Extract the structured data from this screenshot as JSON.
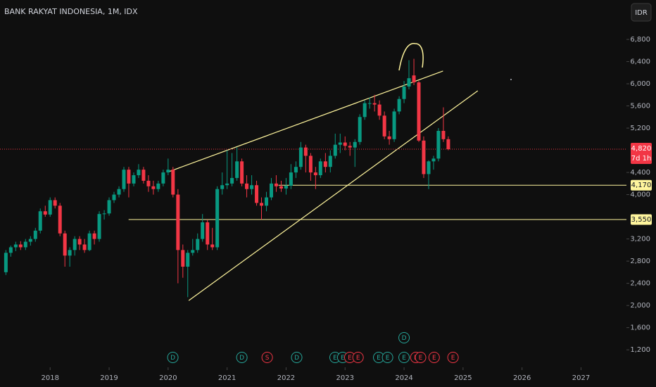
{
  "chart_data": {
    "type": "candlestick",
    "title": "BANK RAKYAT INDONESIA, 1M, IDX",
    "currency": "IDR",
    "up_color": "#089981",
    "down_color": "#f23645",
    "x": [
      2017.25,
      2017.333,
      2017.417,
      2017.5,
      2017.583,
      2017.667,
      2017.75,
      2017.833,
      2017.917,
      2018,
      2018.083,
      2018.167,
      2018.25,
      2018.333,
      2018.417,
      2018.5,
      2018.583,
      2018.667,
      2018.75,
      2018.833,
      2018.917,
      2019,
      2019.083,
      2019.167,
      2019.25,
      2019.333,
      2019.417,
      2019.5,
      2019.583,
      2019.667,
      2019.75,
      2019.833,
      2019.917,
      2020,
      2020.083,
      2020.167,
      2020.25,
      2020.333,
      2020.417,
      2020.5,
      2020.583,
      2020.667,
      2020.75,
      2020.833,
      2020.917,
      2021,
      2021.083,
      2021.167,
      2021.25,
      2021.333,
      2021.417,
      2021.5,
      2021.583,
      2021.667,
      2021.75,
      2021.833,
      2021.917,
      2022,
      2022.083,
      2022.167,
      2022.25,
      2022.333,
      2022.417,
      2022.5,
      2022.583,
      2022.667,
      2022.75,
      2022.833,
      2022.917,
      2023,
      2023.083,
      2023.167,
      2023.25,
      2023.333,
      2023.417,
      2023.5,
      2023.583,
      2023.667,
      2023.75,
      2023.833,
      2023.917,
      2024,
      2024.083,
      2024.167,
      2024.25,
      2024.333,
      2024.417,
      2024.5,
      2024.583,
      2024.667,
      2024.75
    ],
    "open": [
      2600,
      2950,
      3050,
      3100,
      3050,
      3150,
      3200,
      3350,
      3700,
      3640,
      3900,
      3800,
      3300,
      2900,
      3000,
      3200,
      3100,
      3000,
      3300,
      3200,
      3650,
      3660,
      3900,
      4000,
      4100,
      4450,
      4200,
      4350,
      4450,
      4250,
      4150,
      4100,
      4200,
      4400,
      4450,
      4000,
      3000,
      2700,
      2950,
      3000,
      3200,
      3500,
      3100,
      3050,
      4100,
      4170,
      4200,
      4300,
      4600,
      4200,
      4100,
      4170,
      3850,
      3800,
      3950,
      4200,
      4150,
      4110,
      4160,
      4400,
      4500,
      4850,
      4700,
      4400,
      4350,
      4600,
      4500,
      4700,
      4900,
      4940,
      4880,
      4850,
      4950,
      5400,
      5650,
      5650,
      5625,
      5425,
      5050,
      5000,
      5500,
      5725,
      5950,
      6150,
      6025,
      4975,
      4370,
      4600,
      4650,
      5150,
      5000
    ],
    "high": [
      3000,
      3080,
      3150,
      3160,
      3200,
      3250,
      3400,
      3750,
      3800,
      3950,
      3950,
      3850,
      3350,
      3050,
      3250,
      3250,
      3200,
      3350,
      3350,
      3700,
      3720,
      3950,
      4050,
      4150,
      4500,
      4500,
      4400,
      4550,
      4500,
      4350,
      4250,
      4250,
      4450,
      4650,
      4500,
      4100,
      3100,
      3000,
      3200,
      3300,
      3650,
      3550,
      3400,
      4150,
      4400,
      4800,
      4750,
      4850,
      4650,
      4350,
      4350,
      4250,
      3950,
      4050,
      4300,
      4350,
      4250,
      4300,
      4550,
      4600,
      4950,
      4900,
      4750,
      4500,
      4650,
      4750,
      4800,
      5100,
      5100,
      5050,
      4950,
      5000,
      5450,
      5700,
      5750,
      5800,
      5700,
      5500,
      5150,
      5550,
      5775,
      6050,
      6425,
      6450,
      6050,
      5050,
      4620,
      4700,
      5200,
      5575,
      5050
    ],
    "low": [
      2550,
      2880,
      2980,
      3000,
      3000,
      3080,
      3150,
      3300,
      3600,
      3600,
      3750,
      3250,
      2700,
      2700,
      2900,
      3000,
      2950,
      2980,
      3100,
      3150,
      3550,
      3620,
      3850,
      3950,
      4050,
      3950,
      4150,
      4300,
      4200,
      4050,
      4000,
      4050,
      4150,
      4350,
      3950,
      2400,
      2500,
      2150,
      2900,
      2950,
      3150,
      3000,
      3000,
      3000,
      4000,
      4100,
      4150,
      4250,
      4150,
      3950,
      4000,
      3800,
      3550,
      3700,
      3900,
      4050,
      4050,
      4000,
      4100,
      4300,
      4450,
      4400,
      4250,
      4100,
      4300,
      4400,
      4400,
      4650,
      4750,
      4800,
      4700,
      4500,
      4900,
      5350,
      5550,
      5500,
      5350,
      5000,
      4900,
      4950,
      5450,
      5650,
      5900,
      5975,
      4950,
      4300,
      4100,
      4450,
      4600,
      4950,
      4800
    ],
    "close": [
      2950,
      3050,
      3100,
      3050,
      3150,
      3200,
      3350,
      3700,
      3640,
      3900,
      3800,
      3300,
      2900,
      3000,
      3200,
      3100,
      3000,
      3300,
      3200,
      3650,
      3660,
      3900,
      4000,
      4100,
      4450,
      4200,
      4350,
      4450,
      4250,
      4150,
      4100,
      4200,
      4400,
      4450,
      4000,
      3000,
      2700,
      2950,
      3000,
      3200,
      3500,
      3100,
      3050,
      4100,
      4170,
      4200,
      4300,
      4600,
      4200,
      4100,
      4170,
      3850,
      3800,
      3950,
      4200,
      4150,
      4110,
      4160,
      4400,
      4500,
      4850,
      4700,
      4400,
      4350,
      4600,
      4500,
      4700,
      4900,
      4940,
      4880,
      4850,
      4950,
      5400,
      5650,
      5650,
      5625,
      5425,
      5050,
      5000,
      5500,
      5725,
      5950,
      6100,
      6025,
      4975,
      4370,
      4600,
      4650,
      5150,
      5000,
      4820
    ],
    "xlim": [
      2017.15,
      2027.77
    ],
    "xticks": [
      2018,
      2019,
      2020,
      2021,
      2022,
      2023,
      2024,
      2025,
      2026,
      2027
    ],
    "ylim": [
      910,
      7511
    ],
    "yticks": [
      {
        "value": 1200,
        "label": "1,200"
      },
      {
        "value": 1600,
        "label": "1,600"
      },
      {
        "value": 2000,
        "label": "2,000"
      },
      {
        "value": 2400,
        "label": "2,400"
      },
      {
        "value": 2800,
        "label": "2,800"
      },
      {
        "value": 3200,
        "label": "3,200"
      },
      {
        "value": 4000,
        "label": "4,000"
      },
      {
        "value": 4400,
        "label": "4,400"
      },
      {
        "value": 5200,
        "label": "5,200"
      },
      {
        "value": 5600,
        "label": "5,600"
      },
      {
        "value": 6000,
        "label": "6,000"
      },
      {
        "value": 6400,
        "label": "6,400"
      },
      {
        "value": 6800,
        "label": "6,800"
      }
    ],
    "price_lines": [
      {
        "value": 4820,
        "label": "4,820",
        "sublabel": "7d 1h",
        "color": "#f23645",
        "from": 2017.15,
        "dashed": true
      },
      {
        "value": 4170,
        "label": "4,170",
        "color": "#fff59d",
        "from": 2021.87,
        "dashed": false
      },
      {
        "value": 3550,
        "label": "3,550",
        "color": "#fff59d",
        "from": 2019.33,
        "dashed": false
      }
    ],
    "trend_lines": [
      {
        "x": [
          2020.01,
          2024.66
        ],
        "y": [
          4413,
          6229
        ],
        "color": "#fff59d"
      },
      {
        "x": [
          2020.35,
          2025.25
        ],
        "y": [
          2089,
          5873
        ],
        "color": "#fff59d"
      }
    ],
    "events": [
      {
        "x": 2020.08,
        "label": "D",
        "color": "#26a69a"
      },
      {
        "x": 2021.25,
        "label": "D",
        "color": "#26a69a"
      },
      {
        "x": 2021.68,
        "label": "S",
        "color": "#f23645"
      },
      {
        "x": 2022.18,
        "label": "D",
        "color": "#26a69a"
      },
      {
        "x": 2022.83,
        "label": "E",
        "color": "#26a69a"
      },
      {
        "x": 2022.96,
        "label": "E",
        "color": "#26a69a"
      },
      {
        "x": 2023.08,
        "label": "E",
        "color": "#f23645"
      },
      {
        "x": 2023.22,
        "label": "E",
        "color": "#f23645"
      },
      {
        "x": 2023.57,
        "label": "E",
        "color": "#26a69a"
      },
      {
        "x": 2023.72,
        "label": "E",
        "color": "#26a69a"
      },
      {
        "x": 2024.0,
        "label": "E",
        "color": "#26a69a"
      },
      {
        "x": 2024.0,
        "label": "D",
        "color": "#26a69a"
      },
      {
        "x": 2024.2,
        "label": "E",
        "color": "#f23645"
      },
      {
        "x": 2024.28,
        "label": "E",
        "color": "#f23645"
      },
      {
        "x": 2024.51,
        "label": "E",
        "color": "#f23645"
      },
      {
        "x": 2024.83,
        "label": "E",
        "color": "#f23645"
      }
    ]
  }
}
